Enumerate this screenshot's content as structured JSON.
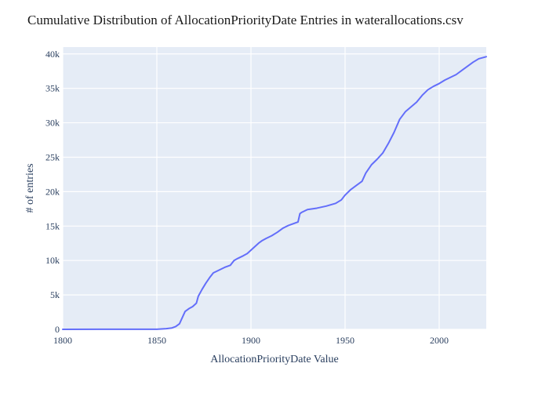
{
  "chart_data": {
    "type": "line",
    "title": "Cumulative Distribution of AllocationPriorityDate Entries in waterallocations.csv",
    "xlabel": "AllocationPriorityDate Value",
    "ylabel": "# of entries",
    "xlim": [
      1800,
      2025
    ],
    "ylim": [
      0,
      41000
    ],
    "x_ticks": [
      1800,
      1850,
      1900,
      1950,
      2000
    ],
    "y_ticks": [
      0,
      5000,
      10000,
      15000,
      20000,
      25000,
      30000,
      35000,
      40000
    ],
    "y_tick_labels": [
      "0",
      "5k",
      "10k",
      "15k",
      "20k",
      "25k",
      "30k",
      "35k",
      "40k"
    ],
    "grid": true,
    "line_color": "#636efa",
    "plot_bg": "#e5ecf6",
    "series": [
      {
        "x": [
          1800,
          1850,
          1855,
          1858,
          1860,
          1862,
          1864,
          1865,
          1867,
          1869,
          1871,
          1872,
          1874,
          1876,
          1878,
          1880,
          1883,
          1886,
          1889,
          1891,
          1893,
          1896,
          1898,
          1900,
          1902,
          1904,
          1906,
          1908,
          1911,
          1914,
          1917,
          1920,
          1923,
          1925,
          1926,
          1927,
          1930,
          1935,
          1940,
          1945,
          1948,
          1950,
          1953,
          1956,
          1959,
          1961,
          1964,
          1967,
          1970,
          1973,
          1976,
          1979,
          1982,
          1985,
          1988,
          1991,
          1994,
          1997,
          2000,
          2003,
          2006,
          2009,
          2012,
          2015,
          2018,
          2021,
          2025
        ],
        "y": [
          0,
          20,
          100,
          200,
          400,
          800,
          2000,
          2600,
          3000,
          3300,
          3800,
          4800,
          5800,
          6700,
          7500,
          8200,
          8600,
          9000,
          9300,
          10000,
          10300,
          10700,
          11000,
          11500,
          12000,
          12500,
          12900,
          13200,
          13600,
          14100,
          14700,
          15100,
          15400,
          15600,
          16800,
          17000,
          17400,
          17600,
          17900,
          18300,
          18800,
          19500,
          20300,
          20900,
          21500,
          22700,
          23900,
          24700,
          25600,
          27000,
          28600,
          30500,
          31600,
          32300,
          33000,
          34000,
          34800,
          35300,
          35700,
          36200,
          36600,
          37000,
          37600,
          38200,
          38800,
          39300,
          39600
        ]
      }
    ]
  }
}
